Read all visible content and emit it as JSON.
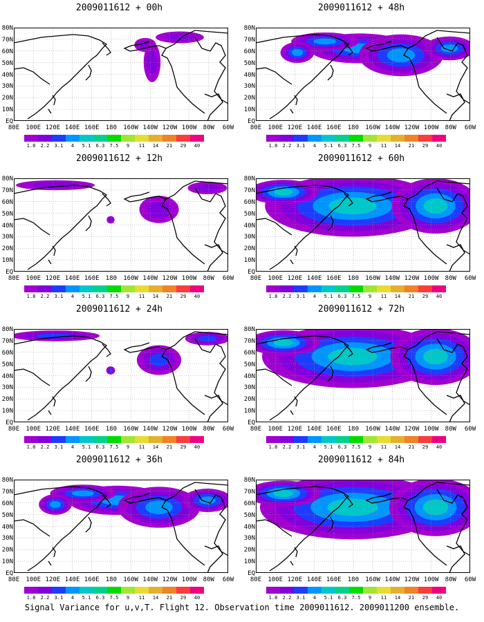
{
  "caption": "Signal Variance for u,v,T. Flight 12. Observation time 2009011612. 2009011200 ensemble.",
  "lat_labels": [
    "80N",
    "70N",
    "60N",
    "50N",
    "40N",
    "30N",
    "20N",
    "10N",
    "EQ"
  ],
  "lon_labels": [
    "80E",
    "100E",
    "120E",
    "140E",
    "160E",
    "180",
    "160W",
    "140W",
    "120W",
    "100W",
    "80W",
    "60W"
  ],
  "colorbar": {
    "labels": [
      "1.8",
      "2.2",
      "3.1",
      "4",
      "5.1",
      "6.3",
      "7.5",
      "9",
      "11",
      "14",
      "21",
      "29",
      "40"
    ],
    "colors": [
      "#a000d0",
      "#8200dc",
      "#1e3cff",
      "#0096ff",
      "#00c8c8",
      "#00d28c",
      "#00dc00",
      "#a0e632",
      "#e6dc32",
      "#e6af2d",
      "#f08228",
      "#fa3c3c",
      "#f00082"
    ]
  },
  "panels": [
    {
      "title": "2009011612 + 00h",
      "col": 0,
      "row": 0,
      "intensity": 0.15,
      "spread": 0.12
    },
    {
      "title": "2009011612 + 12h",
      "col": 0,
      "row": 1,
      "intensity": 0.3,
      "spread": 0.25
    },
    {
      "title": "2009011612 + 24h",
      "col": 0,
      "row": 2,
      "intensity": 0.45,
      "spread": 0.45
    },
    {
      "title": "2009011612 + 36h",
      "col": 0,
      "row": 3,
      "intensity": 0.55,
      "spread": 0.65
    },
    {
      "title": "2009011612 + 48h",
      "col": 1,
      "row": 0,
      "intensity": 0.6,
      "spread": 0.7
    },
    {
      "title": "2009011612 + 60h",
      "col": 1,
      "row": 1,
      "intensity": 0.65,
      "spread": 0.78
    },
    {
      "title": "2009011612 + 72h",
      "col": 1,
      "row": 2,
      "intensity": 0.7,
      "spread": 0.85
    },
    {
      "title": "2009011612 + 84h",
      "col": 1,
      "row": 3,
      "intensity": 0.75,
      "spread": 0.9
    }
  ]
}
